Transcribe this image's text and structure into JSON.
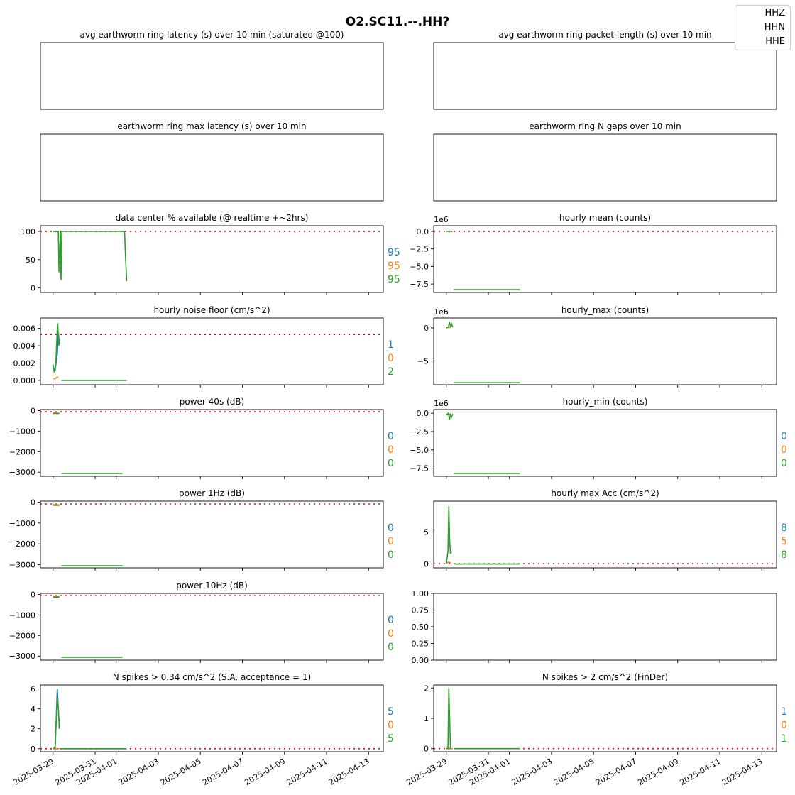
{
  "title": "O2.SC11.--.HH?",
  "legend": [
    "HHZ",
    "HHN",
    "HHE"
  ],
  "colors": {
    "HHZ": "#1f77b4",
    "HHN": "#ff7f0e",
    "HHE": "#2ca02c",
    "threshold": "#ff0000"
  },
  "x_dates": [
    "2025-03-29",
    "2025-03-31",
    "2025-04-01",
    "2025-04-03",
    "2025-04-05",
    "2025-04-07",
    "2025-04-09",
    "2025-04-11",
    "2025-04-13"
  ],
  "chart_data": [
    {
      "id": "p0",
      "type": "line",
      "title": "avg earthworm ring latency (s)   over 10 min (saturated @100)",
      "empty": true
    },
    {
      "id": "p1",
      "type": "line",
      "title": "avg earthworm ring packet length (s)   over 10 min",
      "empty": true
    },
    {
      "id": "p2",
      "type": "line",
      "title": "earthworm ring max latency (s)   over 10 min",
      "empty": true
    },
    {
      "id": "p3",
      "type": "line",
      "title": "earthworm ring N gaps   over 10 min",
      "empty": true
    },
    {
      "id": "p4",
      "type": "line",
      "title": "data center % available (@ realtime +~2hrs)",
      "ylim": [
        -8,
        110
      ],
      "yticks": [
        0,
        50,
        100
      ],
      "yticklabels": [
        "0",
        "50",
        "100"
      ],
      "threshold": 100,
      "series": [
        {
          "name": "HHE",
          "x": [
            0,
            0.25,
            0.28,
            0.35,
            0.38,
            0.42,
            1.0,
            1.5,
            2.0,
            2.5,
            3.0,
            3.3,
            3.4,
            3.45,
            3.5
          ],
          "y": [
            100,
            100,
            28,
            100,
            14,
            100,
            100,
            100,
            100,
            100,
            100,
            100,
            99,
            50,
            12
          ]
        }
      ],
      "right_labels": [
        "95",
        "95",
        "95"
      ]
    },
    {
      "id": "p5",
      "type": "line",
      "title": "hourly mean (counts)",
      "ylim": [
        -8.7,
        0.8
      ],
      "yticks": [
        0,
        -2.5,
        -5.0,
        -7.5
      ],
      "yticklabels": [
        "0.0",
        "−2.5",
        "−5.0",
        "−7.5"
      ],
      "offset": "1e6",
      "threshold": 0,
      "series": [
        {
          "name": "HHE",
          "x": [
            0,
            0.3
          ],
          "y": [
            0.0,
            0.0
          ]
        },
        {
          "name": "HHE",
          "x": [
            0.35,
            3.5
          ],
          "y": [
            -8.3,
            -8.3
          ]
        }
      ],
      "right_labels": []
    },
    {
      "id": "p6",
      "type": "line",
      "title": "hourly noise floor (cm/s^2)",
      "ylim": [
        -0.0005,
        0.0072
      ],
      "yticks": [
        0,
        0.002,
        0.004,
        0.006
      ],
      "yticklabels": [
        "0.000",
        "0.002",
        "0.004",
        "0.006"
      ],
      "threshold": 0.0053,
      "series": [
        {
          "name": "HHZ",
          "x": [
            0,
            0.1,
            0.2,
            0.25,
            0.3
          ],
          "y": [
            0.0015,
            0.0012,
            0.003,
            0.0055,
            0.0042
          ]
        },
        {
          "name": "HHN",
          "x": [
            0,
            0.1,
            0.2,
            0.25
          ],
          "y": [
            0.0002,
            0.0002,
            0.0004,
            0.0003
          ]
        },
        {
          "name": "HHE",
          "x": [
            0,
            0.05,
            0.1,
            0.15,
            0.2,
            0.22,
            0.25,
            0.28
          ],
          "y": [
            0.0018,
            0.001,
            0.0012,
            0.003,
            0.006,
            0.0066,
            0.005,
            0.004
          ]
        },
        {
          "name": "HHE",
          "x": [
            0.4,
            3.5
          ],
          "y": [
            0.0,
            0.0
          ]
        }
      ],
      "right_labels": [
        "1",
        "0",
        "2"
      ]
    },
    {
      "id": "p7",
      "type": "line",
      "title": "hourly_max (counts)",
      "ylim": [
        -8.6,
        1.5
      ],
      "yticks": [
        0,
        -5
      ],
      "yticklabels": [
        "0",
        "−5"
      ],
      "offset": "1e6",
      "series": [
        {
          "name": "HHN",
          "x": [
            0,
            0.2
          ],
          "y": [
            0.05,
            0.15
          ]
        },
        {
          "name": "HHE",
          "x": [
            0,
            0.1,
            0.15,
            0.2,
            0.25,
            0.3
          ],
          "y": [
            0.0,
            0.1,
            0.9,
            0.2,
            0.6,
            0.1
          ]
        },
        {
          "name": "HHE",
          "x": [
            0.35,
            3.5
          ],
          "y": [
            -8.3,
            -8.3
          ]
        }
      ],
      "right_labels": []
    },
    {
      "id": "p8",
      "type": "line",
      "title": "power 40s (dB)",
      "ylim": [
        -3200,
        50
      ],
      "yticks": [
        0,
        -1000,
        -2000,
        -3000
      ],
      "yticklabels": [
        "0",
        "−1000",
        "−2000",
        "−3000"
      ],
      "threshold": -60,
      "series": [
        {
          "name": "HHN",
          "x": [
            0,
            0.3
          ],
          "y": [
            -110,
            -130
          ]
        },
        {
          "name": "HHE",
          "x": [
            0,
            0.3
          ],
          "y": [
            -140,
            -140
          ]
        },
        {
          "name": "HHE",
          "x": [
            0.4,
            3.3
          ],
          "y": [
            -3060,
            -3060
          ]
        }
      ],
      "right_labels": [
        "0",
        "0",
        "0"
      ]
    },
    {
      "id": "p9",
      "type": "line",
      "title": "hourly_min (counts)",
      "ylim": [
        -8.6,
        0.5
      ],
      "yticks": [
        0,
        -2.5,
        -5.0,
        -7.5
      ],
      "yticklabels": [
        "0.0",
        "−2.5",
        "−5.0",
        "−7.5"
      ],
      "offset": "1e6",
      "series": [
        {
          "name": "HHN",
          "x": [
            0,
            0.2
          ],
          "y": [
            -0.2,
            -0.1
          ]
        },
        {
          "name": "HHE",
          "x": [
            0,
            0.1,
            0.15,
            0.2,
            0.25,
            0.3
          ],
          "y": [
            -0.2,
            0.0,
            -0.9,
            -0.2,
            -0.5,
            -0.1
          ]
        },
        {
          "name": "HHE",
          "x": [
            0.35,
            3.5
          ],
          "y": [
            -8.2,
            -8.2
          ]
        }
      ],
      "right_labels": [
        "0",
        "0",
        "0"
      ]
    },
    {
      "id": "p10",
      "type": "line",
      "title": "power 1Hz (dB)",
      "ylim": [
        -3150,
        50
      ],
      "yticks": [
        0,
        -1000,
        -2000,
        -3000
      ],
      "yticklabels": [
        "0",
        "−1000",
        "−2000",
        "−3000"
      ],
      "threshold": -90,
      "series": [
        {
          "name": "HHN",
          "x": [
            0,
            0.3
          ],
          "y": [
            -110,
            -130
          ]
        },
        {
          "name": "HHE",
          "x": [
            0,
            0.3
          ],
          "y": [
            -150,
            -150
          ]
        },
        {
          "name": "HHE",
          "x": [
            0.4,
            3.3
          ],
          "y": [
            -3050,
            -3050
          ]
        }
      ],
      "right_labels": [
        "0",
        "0",
        "0"
      ]
    },
    {
      "id": "p11",
      "type": "line",
      "title": "hourly max Acc (cm/s^2)",
      "ylim": [
        -0.6,
        9.8
      ],
      "yticks": [
        0,
        5
      ],
      "yticklabels": [
        "0",
        "5"
      ],
      "threshold": 0.05,
      "series": [
        {
          "name": "HHN",
          "x": [
            0,
            0.1,
            0.2
          ],
          "y": [
            0.1,
            0.3,
            0.2
          ]
        },
        {
          "name": "HHE",
          "x": [
            0,
            0.08,
            0.12,
            0.16,
            0.2,
            0.25
          ],
          "y": [
            0.1,
            2.0,
            9.0,
            3.5,
            1.6,
            2.0
          ]
        },
        {
          "name": "HHE",
          "x": [
            0.35,
            3.5
          ],
          "y": [
            0.0,
            0.0
          ]
        }
      ],
      "right_labels": [
        "8",
        "5",
        "8"
      ]
    },
    {
      "id": "p12",
      "type": "line",
      "title": "power 10Hz (dB)",
      "ylim": [
        -3200,
        50
      ],
      "yticks": [
        0,
        -1000,
        -2000,
        -3000
      ],
      "yticklabels": [
        "0",
        "−1000",
        "−2000",
        "−3000"
      ],
      "threshold": -60,
      "series": [
        {
          "name": "HHN",
          "x": [
            0,
            0.3
          ],
          "y": [
            -100,
            -120
          ]
        },
        {
          "name": "HHE",
          "x": [
            0,
            0.3
          ],
          "y": [
            -130,
            -130
          ]
        },
        {
          "name": "HHE",
          "x": [
            0.4,
            3.3
          ],
          "y": [
            -3060,
            -3060
          ]
        }
      ],
      "right_labels": [
        "0",
        "0",
        "0"
      ]
    },
    {
      "id": "p13",
      "type": "line",
      "title": "",
      "ylim": [
        0,
        1
      ],
      "yticks": [
        0,
        0.25,
        0.5,
        0.75,
        1.0
      ],
      "yticklabels": [
        "0.00",
        "0.25",
        "0.50",
        "0.75",
        "1.00"
      ],
      "series": [],
      "right_labels": []
    },
    {
      "id": "p14",
      "type": "line",
      "title": "N spikes > 0.34 cm/s^2 (S.A. acceptance = 1)",
      "ylim": [
        -0.3,
        6.4
      ],
      "yticks": [
        0,
        2,
        4,
        6
      ],
      "yticklabels": [
        "0",
        "2",
        "4",
        "6"
      ],
      "threshold": 0,
      "series": [
        {
          "name": "HHZ",
          "x": [
            0,
            0.1,
            0.2,
            0.25,
            0.3
          ],
          "y": [
            0,
            0,
            6,
            4,
            2
          ]
        },
        {
          "name": "HHN",
          "x": [
            0,
            0.3
          ],
          "y": [
            0,
            0
          ]
        },
        {
          "name": "HHE",
          "x": [
            0,
            0.1,
            0.2,
            0.25,
            0.3
          ],
          "y": [
            0,
            0.2,
            5,
            4,
            2
          ]
        },
        {
          "name": "HHE",
          "x": [
            0.35,
            3.5
          ],
          "y": [
            0,
            0
          ]
        }
      ],
      "right_labels": [
        "5",
        "0",
        "5"
      ]
    },
    {
      "id": "p15",
      "type": "line",
      "title": "N spikes > 2 cm/s^2 (FinDer)",
      "ylim": [
        -0.1,
        2.1
      ],
      "yticks": [
        0,
        1,
        2
      ],
      "yticklabels": [
        "0",
        "1",
        "2"
      ],
      "threshold": 0,
      "series": [
        {
          "name": "HHN",
          "x": [
            0,
            0.3
          ],
          "y": [
            0,
            0
          ]
        },
        {
          "name": "HHE",
          "x": [
            0,
            0.08,
            0.12,
            0.2,
            0.24
          ],
          "y": [
            0,
            0,
            2,
            0,
            0
          ]
        },
        {
          "name": "HHE",
          "x": [
            0.35,
            3.5
          ],
          "y": [
            0,
            0
          ]
        }
      ],
      "right_labels": [
        "1",
        "0",
        "1"
      ]
    }
  ]
}
